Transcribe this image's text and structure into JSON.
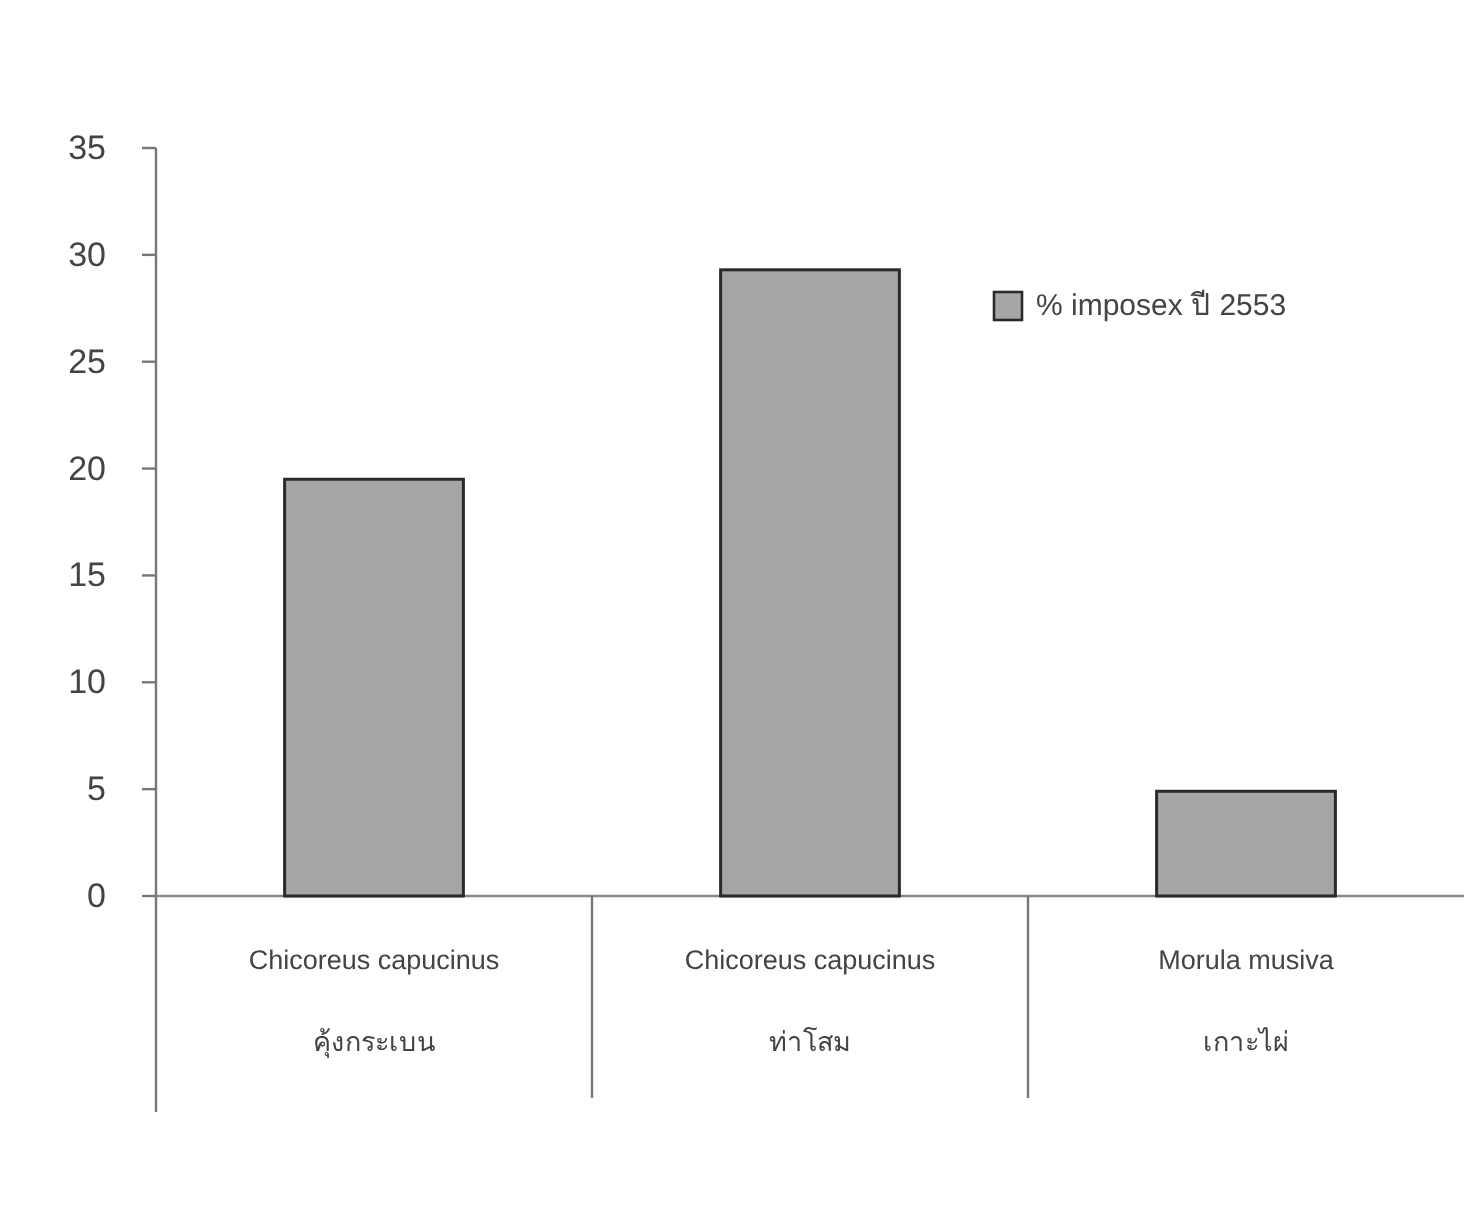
{
  "chart_data": {
    "type": "bar",
    "categories": [
      "Chicoreus capucinus\nคุ้งกระเบน",
      "Chicoreus capucinus\nท่าโสม",
      "Morula musiva\nเกาะไผ่"
    ],
    "series": [
      {
        "name": "% imposex ปี 2553",
        "color": "#a6a6a6",
        "values": [
          19.5,
          29.3,
          4.9
        ]
      }
    ],
    "ylim": [
      0,
      35
    ],
    "yticks": [
      0,
      5,
      10,
      15,
      20,
      25,
      30,
      35
    ],
    "legend": "top right"
  }
}
